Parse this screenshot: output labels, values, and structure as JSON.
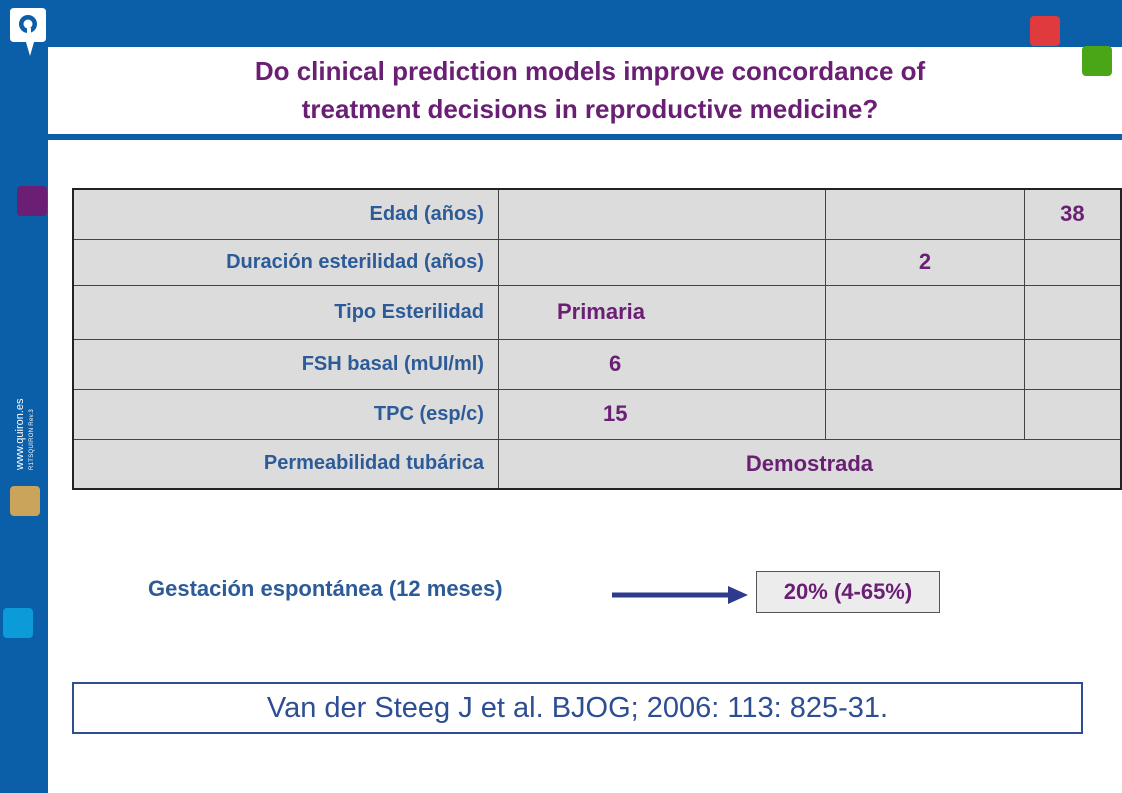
{
  "title": {
    "line1": "Do clinical prediction models improve concordance of",
    "line2": "treatment decisions in reproductive medicine?"
  },
  "sidebar": {
    "website": "www.quiron.es",
    "code": "R1TSQUIRON Rev.3"
  },
  "table": {
    "rows": [
      {
        "label": "Edad (años)",
        "value": "38"
      },
      {
        "label": "Duración esterilidad (años)",
        "value": "2"
      },
      {
        "label": "Tipo Esterilidad",
        "value": "Primaria"
      },
      {
        "label": "FSH basal (mUI/ml)",
        "value": "6"
      },
      {
        "label": "TPC (esp/c)",
        "value": "15"
      },
      {
        "label": "Permeabilidad tubárica",
        "value": "Demostrada"
      }
    ]
  },
  "outcome": {
    "label": "Gestación espontánea (12 meses)",
    "result": "20% (4-65%)"
  },
  "reference": "Van der Steeg J et al. BJOG; 2006: 113: 825-31.",
  "colors": {
    "frame": "#0b5ea8",
    "title": "#6a1e74",
    "label": "#2d5b98",
    "red_square": "#e03a3e",
    "green_square": "#4aa616",
    "purple_square": "#6a1e74",
    "gold_square": "#c9a45a",
    "cyan_square": "#0b9bd8"
  },
  "icons": {
    "logo": "quiron-q-logo",
    "arrow": "right-arrow-icon"
  }
}
